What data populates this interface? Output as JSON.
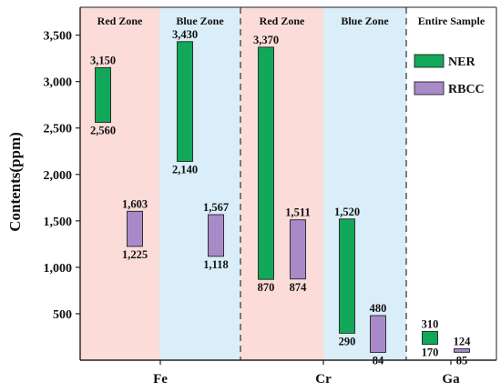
{
  "chart_data": {
    "type": "bar",
    "subtype": "floating-range",
    "ylabel": "Contents(ppm)",
    "ylim": [
      0,
      3800
    ],
    "y_ticks": [
      {
        "value": 500,
        "label": "500"
      },
      {
        "value": 1000,
        "label": "1,000"
      },
      {
        "value": 1500,
        "label": "1,500"
      },
      {
        "value": 2000,
        "label": "2,000"
      },
      {
        "value": 2500,
        "label": "2,500"
      },
      {
        "value": 3000,
        "label": "3,000"
      },
      {
        "value": 3500,
        "label": "3,500"
      }
    ],
    "categories": [
      "Fe",
      "Cr",
      "Ga"
    ],
    "zones": [
      {
        "label": "Red Zone",
        "color": "#fbdcd8"
      },
      {
        "label": "Blue Zone",
        "color": "#d9eef8"
      },
      {
        "label": "Red Zone",
        "color": "#fbdcd8"
      },
      {
        "label": "Blue Zone",
        "color": "#d9eef8"
      },
      {
        "label": "Entire Sample",
        "color": "#ffffff"
      }
    ],
    "legend": {
      "position": "top-right"
    },
    "series": [
      {
        "name": "NER",
        "color": "#11a85a",
        "ranges": [
          {
            "element": "Fe",
            "zone": "Red Zone",
            "low": 2560,
            "high": 3150,
            "low_label": "2,560",
            "high_label": "3,150"
          },
          {
            "element": "Fe",
            "zone": "Blue Zone",
            "low": 2140,
            "high": 3430,
            "low_label": "2,140",
            "high_label": "3,430"
          },
          {
            "element": "Cr",
            "zone": "Red Zone",
            "low": 870,
            "high": 3370,
            "low_label": "870",
            "high_label": "3,370"
          },
          {
            "element": "Cr",
            "zone": "Blue Zone",
            "low": 290,
            "high": 1520,
            "low_label": "290",
            "high_label": "1,520"
          },
          {
            "element": "Ga",
            "zone": "Entire Sample",
            "low": 170,
            "high": 310,
            "low_label": "170",
            "high_label": "310"
          }
        ]
      },
      {
        "name": "RBCC",
        "color": "#a98ac9",
        "ranges": [
          {
            "element": "Fe",
            "zone": "Red Zone",
            "low": 1225,
            "high": 1603,
            "low_label": "1,225",
            "high_label": "1,603"
          },
          {
            "element": "Fe",
            "zone": "Blue Zone",
            "low": 1118,
            "high": 1567,
            "low_label": "1,118",
            "high_label": "1,567"
          },
          {
            "element": "Cr",
            "zone": "Red Zone",
            "low": 874,
            "high": 1511,
            "low_label": "874",
            "high_label": "1,511"
          },
          {
            "element": "Cr",
            "zone": "Blue Zone",
            "low": 84,
            "high": 480,
            "low_label": "84",
            "high_label": "480"
          },
          {
            "element": "Ga",
            "zone": "Entire Sample",
            "low": 85,
            "high": 124,
            "low_label": "85",
            "high_label": "124"
          }
        ]
      }
    ]
  }
}
